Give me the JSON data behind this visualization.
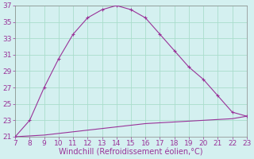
{
  "x_upper": [
    7,
    8,
    9,
    10,
    11,
    12,
    13,
    14,
    15,
    16,
    17,
    18,
    19,
    20,
    21,
    22,
    23
  ],
  "y_upper": [
    21,
    23,
    27,
    30.5,
    33.5,
    35.5,
    36.5,
    37,
    36.5,
    35.5,
    33.5,
    31.5,
    29.5,
    28,
    26,
    24,
    23.5
  ],
  "x_lower": [
    7,
    8,
    9,
    10,
    11,
    12,
    13,
    14,
    15,
    16,
    17,
    18,
    19,
    20,
    21,
    22,
    23
  ],
  "y_lower": [
    21,
    21.1,
    21.2,
    21.4,
    21.6,
    21.8,
    22.0,
    22.2,
    22.4,
    22.6,
    22.7,
    22.8,
    22.9,
    23.0,
    23.1,
    23.2,
    23.5
  ],
  "line_color": "#993399",
  "bg_color": "#d4f0f0",
  "grid_color": "#aaddcc",
  "xlabel": "Windchill (Refroidissement éolien,°C)",
  "xlim": [
    7,
    23
  ],
  "ylim": [
    21,
    37
  ],
  "xticks": [
    7,
    8,
    9,
    10,
    11,
    12,
    13,
    14,
    15,
    16,
    17,
    18,
    19,
    20,
    21,
    22,
    23
  ],
  "yticks": [
    21,
    23,
    25,
    27,
    29,
    31,
    33,
    35,
    37
  ],
  "xlabel_color": "#993399",
  "tick_color": "#993399",
  "xlabel_fontsize": 7,
  "tick_fontsize": 6.5,
  "spine_color": "#888888"
}
